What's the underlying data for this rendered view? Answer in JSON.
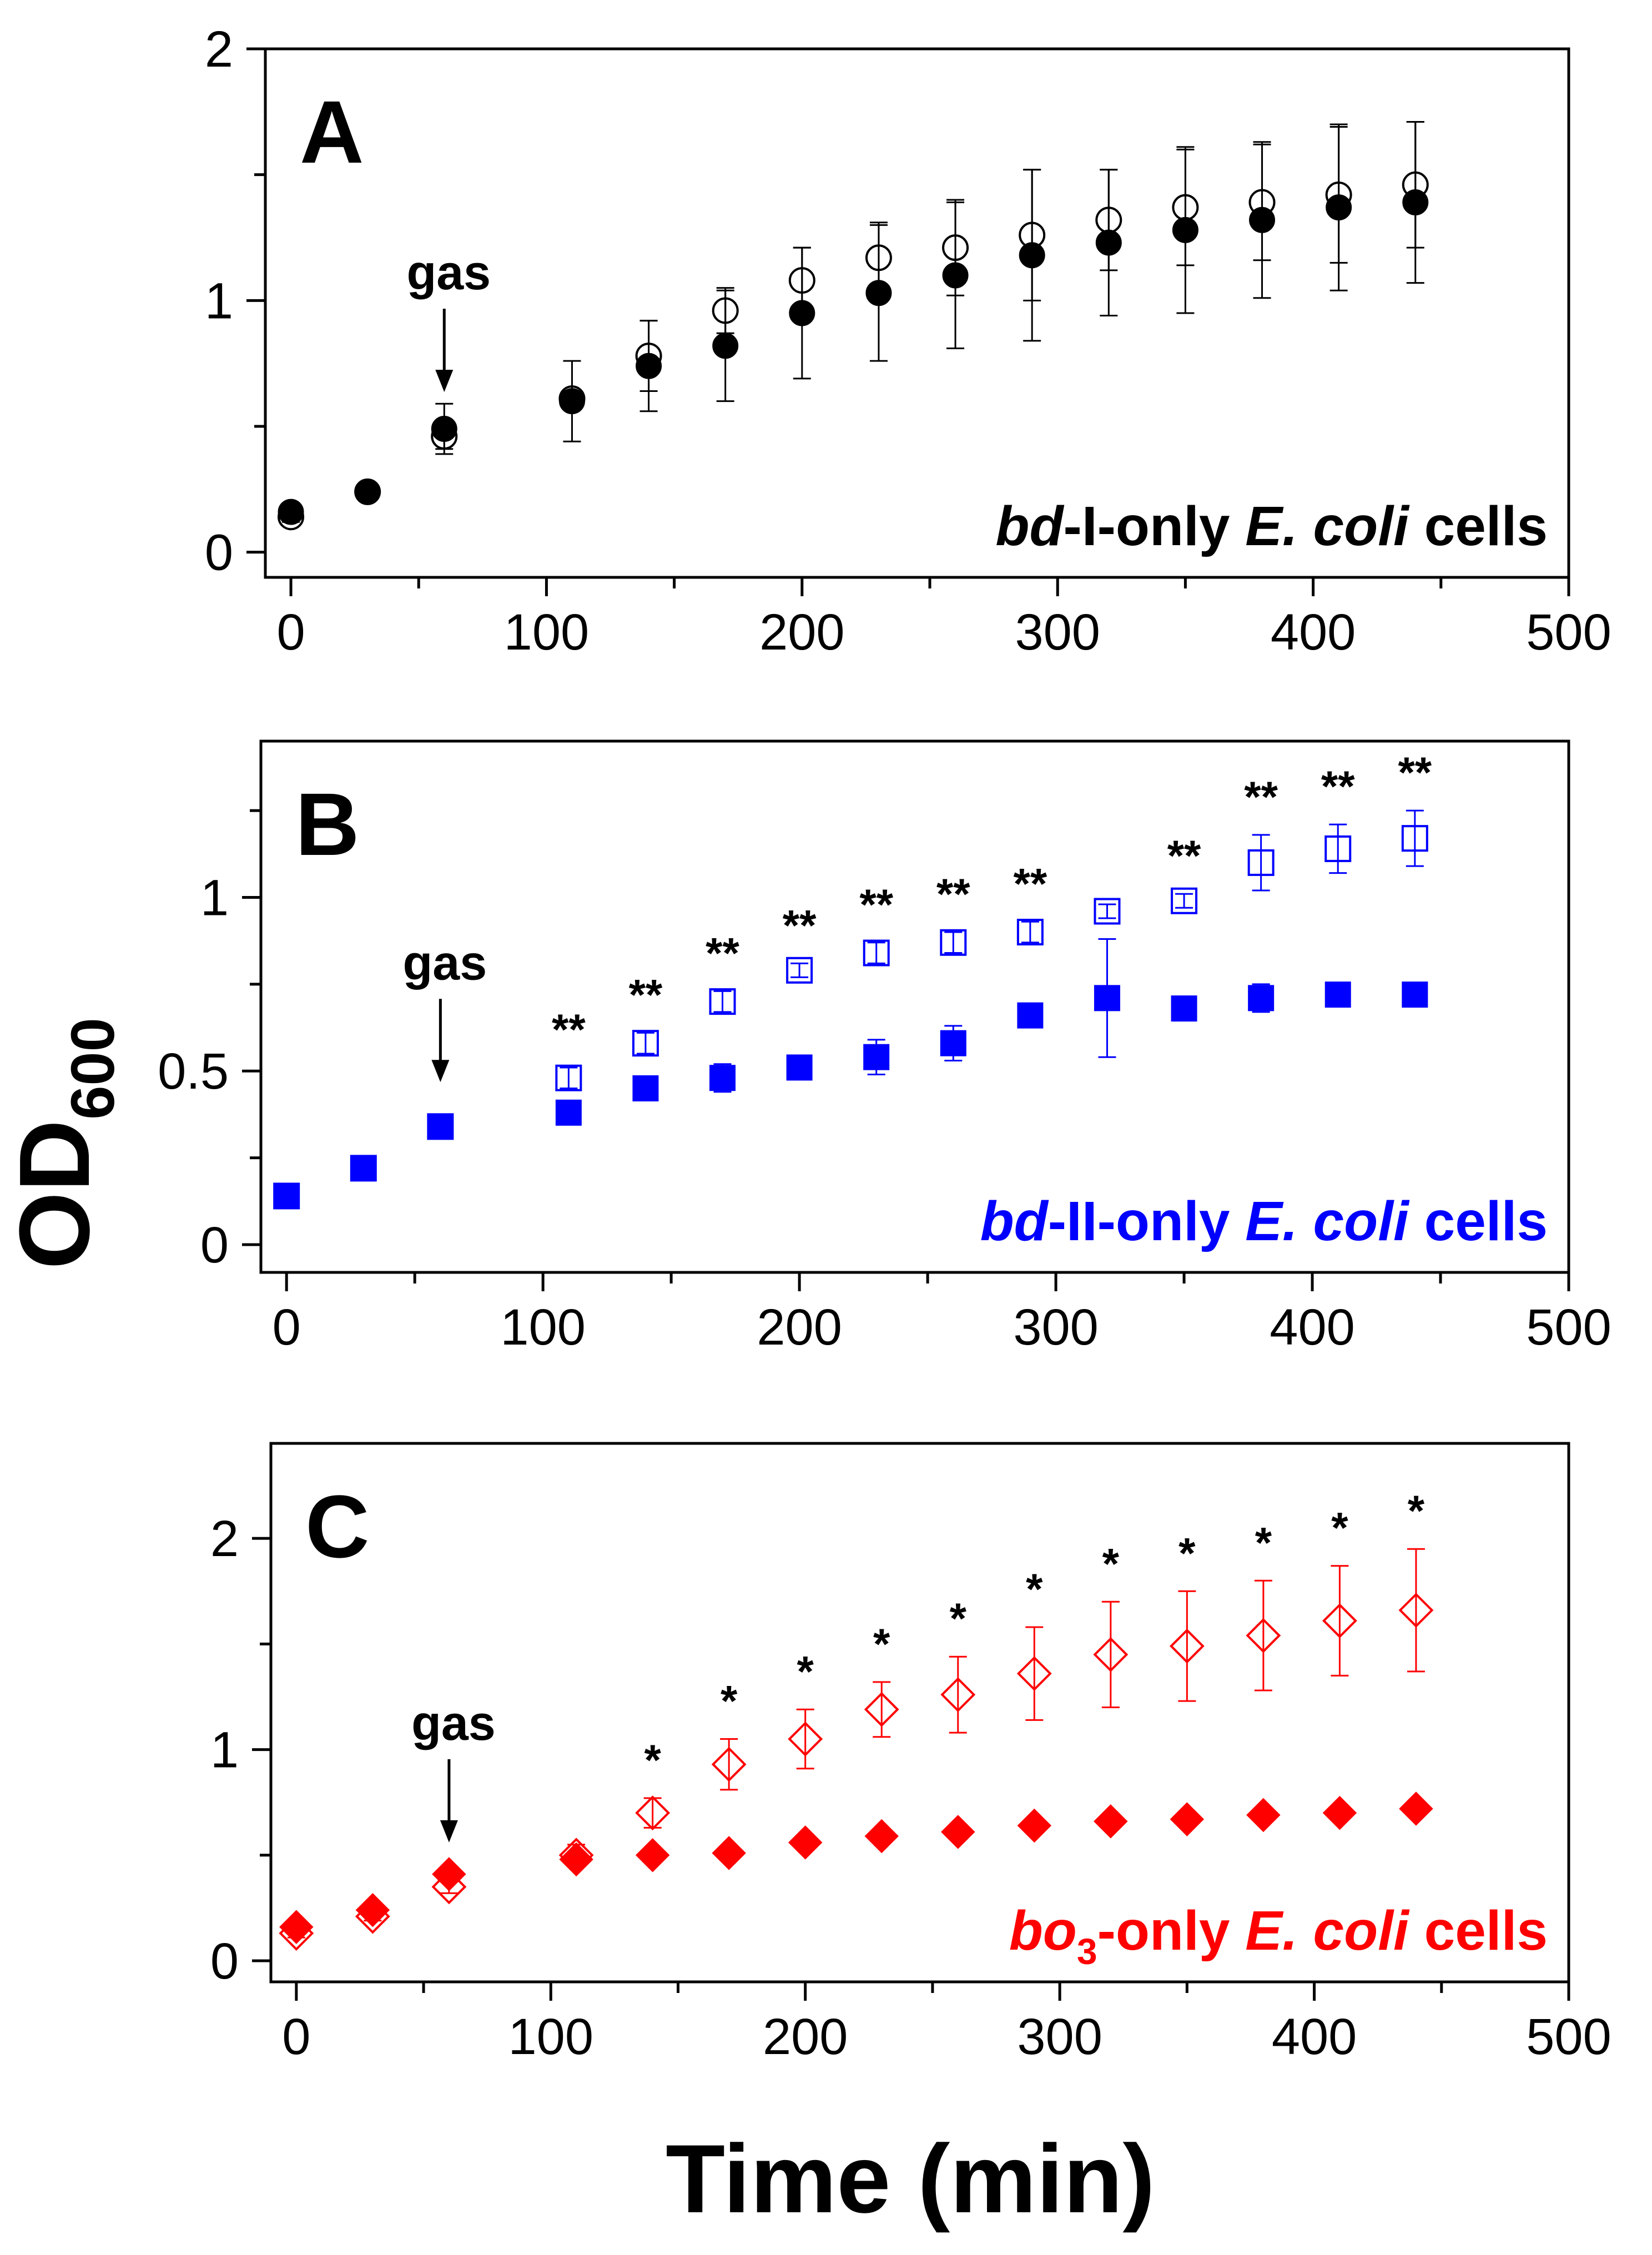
{
  "figure": {
    "ylabel_main": "OD",
    "ylabel_sub": "600",
    "xlabel": "Time (min)"
  },
  "chart_data": [
    {
      "type": "scatter",
      "panel": "A",
      "caption_parts": [
        {
          "text": "bd",
          "italic": true
        },
        {
          "text": "-I-only ",
          "italic": false
        },
        {
          "text": "E. coli",
          "italic": true
        },
        {
          "text": " cells",
          "italic": false
        }
      ],
      "caption_color": "#000000",
      "xlim": [
        -10,
        500
      ],
      "ylim": [
        -0.1,
        2
      ],
      "x_ticks": [
        0,
        100,
        200,
        300,
        400,
        500
      ],
      "x_tick_labels": [
        "0",
        "100",
        "200",
        "300",
        "400",
        "500"
      ],
      "y_ticks": [
        0,
        1,
        2
      ],
      "y_tick_labels": [
        "0",
        "1",
        "2"
      ],
      "x_minor_ticks": [
        50,
        150,
        250,
        350,
        450
      ],
      "y_minor_ticks": [
        0.5,
        1.5
      ],
      "annotation": {
        "text": "gas",
        "x": 60
      },
      "significance": [],
      "series": [
        {
          "name": "open circles",
          "marker": "circle-open",
          "color": "#000000",
          "x": [
            0,
            30,
            60,
            110,
            140,
            170,
            200,
            230,
            260,
            290,
            320,
            350,
            380,
            410,
            440
          ],
          "y": [
            0.14,
            0.24,
            0.46,
            0.61,
            0.78,
            0.96,
            1.08,
            1.17,
            1.21,
            1.26,
            1.32,
            1.37,
            1.39,
            1.42,
            1.46
          ],
          "err": [
            0.02,
            0.01,
            0.05,
            0.03,
            0.14,
            0.09,
            0.13,
            0.14,
            0.19,
            0.26,
            0.2,
            0.23,
            0.23,
            0.27,
            0.25
          ]
        },
        {
          "name": "filled circles",
          "marker": "circle-filled",
          "color": "#000000",
          "x": [
            0,
            30,
            60,
            110,
            140,
            170,
            200,
            230,
            260,
            290,
            320,
            350,
            380,
            410,
            440
          ],
          "y": [
            0.16,
            0.24,
            0.49,
            0.6,
            0.74,
            0.82,
            0.95,
            1.03,
            1.1,
            1.18,
            1.23,
            1.28,
            1.32,
            1.37,
            1.39
          ],
          "err": [
            0.02,
            0.01,
            0.1,
            0.16,
            0.18,
            0.22,
            0.26,
            0.27,
            0.29,
            0.34,
            0.29,
            0.33,
            0.31,
            0.33,
            0.32
          ]
        }
      ]
    },
    {
      "type": "scatter",
      "panel": "B",
      "caption_parts": [
        {
          "text": "bd",
          "italic": true
        },
        {
          "text": "-II-only ",
          "italic": false
        },
        {
          "text": "E. coli",
          "italic": true
        },
        {
          "text": " cells",
          "italic": false
        }
      ],
      "caption_color": "#0000ff",
      "xlim": [
        -10,
        500
      ],
      "ylim": [
        -0.08,
        1.45
      ],
      "x_ticks": [
        0,
        100,
        200,
        300,
        400,
        500
      ],
      "x_tick_labels": [
        "0",
        "100",
        "200",
        "300",
        "400",
        "500"
      ],
      "y_ticks": [
        0,
        0.5,
        1
      ],
      "y_tick_labels": [
        "0",
        "0.5",
        "1"
      ],
      "x_minor_ticks": [
        50,
        150,
        250,
        350,
        450
      ],
      "y_minor_ticks": [
        0.25,
        0.75,
        1.25
      ],
      "annotation": {
        "text": "gas",
        "x": 60
      },
      "significance": [
        {
          "x": 110,
          "label": "**"
        },
        {
          "x": 140,
          "label": "**"
        },
        {
          "x": 170,
          "label": "**"
        },
        {
          "x": 200,
          "label": "**"
        },
        {
          "x": 230,
          "label": "**"
        },
        {
          "x": 260,
          "label": "**"
        },
        {
          "x": 290,
          "label": "**"
        },
        {
          "x": 350,
          "label": "**"
        },
        {
          "x": 380,
          "label": "**"
        },
        {
          "x": 410,
          "label": "**"
        },
        {
          "x": 440,
          "label": "**"
        }
      ],
      "series": [
        {
          "name": "open squares",
          "marker": "square-open",
          "color": "#0000ff",
          "x": [
            0,
            30,
            60,
            110,
            140,
            170,
            200,
            230,
            260,
            290,
            320,
            350,
            380,
            410,
            440
          ],
          "y": [
            0.14,
            0.22,
            0.34,
            0.48,
            0.58,
            0.7,
            0.79,
            0.84,
            0.87,
            0.9,
            0.96,
            0.99,
            1.1,
            1.14,
            1.17
          ],
          "err": [
            0.01,
            0.01,
            0.01,
            0.03,
            0.03,
            0.03,
            0.02,
            0.03,
            0.03,
            0.03,
            0.02,
            0.02,
            0.08,
            0.07,
            0.08
          ]
        },
        {
          "name": "filled squares",
          "marker": "square-filled",
          "color": "#0000ff",
          "x": [
            0,
            30,
            60,
            110,
            140,
            170,
            200,
            230,
            260,
            290,
            320,
            350,
            380,
            410,
            440
          ],
          "y": [
            0.14,
            0.22,
            0.34,
            0.38,
            0.45,
            0.48,
            0.51,
            0.54,
            0.58,
            0.66,
            0.71,
            0.68,
            0.71,
            0.72,
            0.72
          ],
          "err": [
            0.01,
            0.01,
            0.01,
            0.02,
            0.03,
            0.04,
            0.02,
            0.05,
            0.05,
            0.02,
            0.17,
            0.02,
            0.04,
            0.03,
            0.02
          ]
        }
      ]
    },
    {
      "type": "scatter",
      "panel": "C",
      "caption_parts": [
        {
          "text": "bo",
          "italic": true
        },
        {
          "text": "3",
          "italic": false,
          "subscript": true
        },
        {
          "text": "-only ",
          "italic": false
        },
        {
          "text": "E. coli",
          "italic": true
        },
        {
          "text": " cells",
          "italic": false
        }
      ],
      "caption_color": "#ff0000",
      "xlim": [
        -10,
        500
      ],
      "ylim": [
        -0.1,
        2.45
      ],
      "x_ticks": [
        0,
        100,
        200,
        300,
        400,
        500
      ],
      "x_tick_labels": [
        "0",
        "100",
        "200",
        "300",
        "400",
        "500"
      ],
      "y_ticks": [
        0,
        1,
        2
      ],
      "y_tick_labels": [
        "0",
        "1",
        "2"
      ],
      "x_minor_ticks": [
        50,
        150,
        250,
        350,
        450
      ],
      "y_minor_ticks": [
        0.5,
        1.5
      ],
      "annotation": {
        "text": "gas",
        "x": 60
      },
      "significance": [
        {
          "x": 140,
          "label": "*"
        },
        {
          "x": 170,
          "label": "*"
        },
        {
          "x": 200,
          "label": "*"
        },
        {
          "x": 230,
          "label": "*"
        },
        {
          "x": 260,
          "label": "*"
        },
        {
          "x": 290,
          "label": "*"
        },
        {
          "x": 320,
          "label": "*"
        },
        {
          "x": 350,
          "label": "*"
        },
        {
          "x": 380,
          "label": "*"
        },
        {
          "x": 410,
          "label": "*"
        },
        {
          "x": 440,
          "label": "*"
        }
      ],
      "series": [
        {
          "name": "open diamonds",
          "marker": "diamond-open",
          "color": "#ff0000",
          "x": [
            0,
            30,
            60,
            110,
            140,
            170,
            200,
            230,
            260,
            290,
            320,
            350,
            380,
            410,
            440
          ],
          "y": [
            0.13,
            0.21,
            0.35,
            0.5,
            0.7,
            0.93,
            1.05,
            1.19,
            1.26,
            1.36,
            1.45,
            1.49,
            1.54,
            1.61,
            1.66
          ],
          "err": [
            0.02,
            0.02,
            0.03,
            0.05,
            0.07,
            0.12,
            0.14,
            0.13,
            0.18,
            0.22,
            0.25,
            0.26,
            0.26,
            0.26,
            0.29
          ]
        },
        {
          "name": "filled diamonds",
          "marker": "diamond-filled",
          "color": "#ff0000",
          "x": [
            0,
            30,
            60,
            110,
            140,
            170,
            200,
            230,
            260,
            290,
            320,
            350,
            380,
            410,
            440
          ],
          "y": [
            0.16,
            0.24,
            0.41,
            0.48,
            0.5,
            0.51,
            0.56,
            0.59,
            0.61,
            0.64,
            0.66,
            0.67,
            0.69,
            0.7,
            0.72
          ],
          "err": [
            0.01,
            0.01,
            0.02,
            0.02,
            0.01,
            0.01,
            0.01,
            0.01,
            0.01,
            0.01,
            0.01,
            0.01,
            0.01,
            0.01,
            0.01
          ]
        }
      ]
    }
  ]
}
